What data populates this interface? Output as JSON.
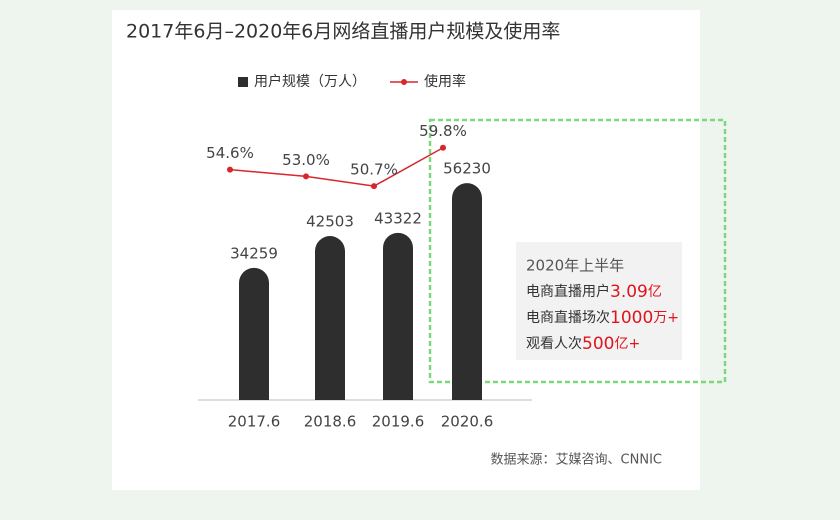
{
  "chart_data": {
    "type": "bar",
    "title": "2017年6月–2020年6月网络直播用户规模及使用率",
    "categories": [
      "2017.6",
      "2018.6",
      "2019.6",
      "2020.6"
    ],
    "series": [
      {
        "name": "用户规模（万人）",
        "color": "#2e2e2e",
        "values": [
          34259,
          42503,
          43322,
          56230
        ]
      },
      {
        "name": "使用率",
        "color": "#d9262c",
        "axis": "y2",
        "type": "line",
        "values": [
          54.6,
          53.0,
          50.7,
          59.8
        ],
        "value_labels": [
          "54.6%",
          "53.0%",
          "50.7%",
          "59.8%"
        ]
      }
    ],
    "ylim": [
      0,
      70000
    ],
    "y2lim": [
      0,
      64
    ],
    "annotation": {
      "heading": "2020年上半年",
      "lines": [
        {
          "label": "电商直播用户",
          "value": "3.09",
          "unit": "亿"
        },
        {
          "label": "电商直播场次",
          "value": "1000",
          "unit": "万+"
        },
        {
          "label": "观看人次",
          "value": "500",
          "unit": "亿+"
        }
      ]
    },
    "source": "数据来源：艾媒咨询、CNNIC"
  }
}
